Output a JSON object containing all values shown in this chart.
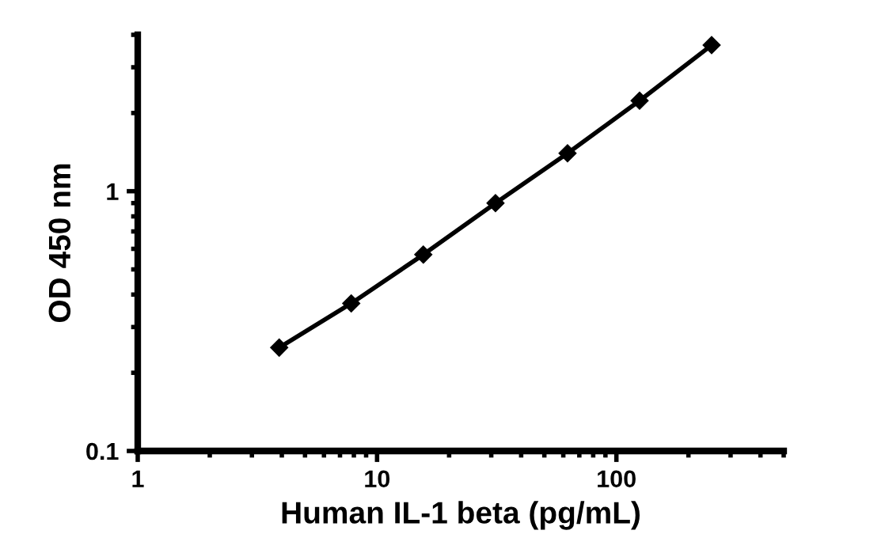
{
  "chart_data": {
    "type": "line",
    "xlabel": "Human IL-1 beta (pg/mL)",
    "ylabel": "OD 450 nm",
    "log": "xy",
    "marker": "diamond",
    "line_style": "solid",
    "grid": false,
    "legend": false,
    "x": [
      3.9,
      7.8,
      15.6,
      31.25,
      62.5,
      125,
      250
    ],
    "series": [
      {
        "color": "#000000",
        "values": [
          0.25,
          0.37,
          0.57,
          0.9,
          1.4,
          2.23,
          3.65
        ]
      }
    ],
    "xlim": [
      1,
      500
    ],
    "ylim": [
      0.1,
      4
    ],
    "xticks": [
      1,
      10,
      100
    ],
    "yticks": [
      0.1,
      1
    ]
  }
}
